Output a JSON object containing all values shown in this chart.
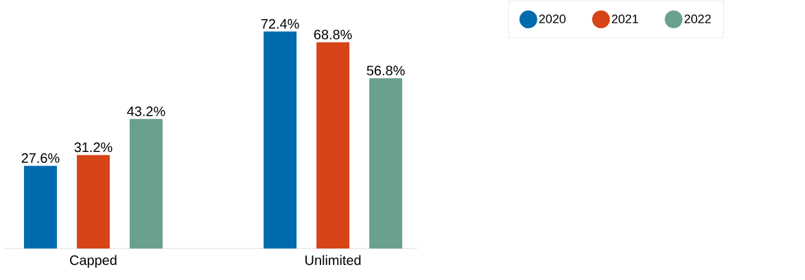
{
  "chart_data": {
    "type": "bar",
    "categories": [
      "Capped",
      "Unlimited"
    ],
    "series": [
      {
        "name": "2020",
        "color": "#006bac",
        "values": [
          27.6,
          72.4
        ],
        "value_labels": [
          "27.6%",
          "72.4%"
        ]
      },
      {
        "name": "2021",
        "color": "#d64417",
        "values": [
          31.2,
          68.8
        ],
        "value_labels": [
          "31.2%",
          "68.8%"
        ]
      },
      {
        "name": "2022",
        "color": "#6aa08e",
        "values": [
          43.2,
          56.8
        ],
        "value_labels": [
          "43.2%",
          "56.8%"
        ]
      }
    ],
    "legend": "top right"
  }
}
